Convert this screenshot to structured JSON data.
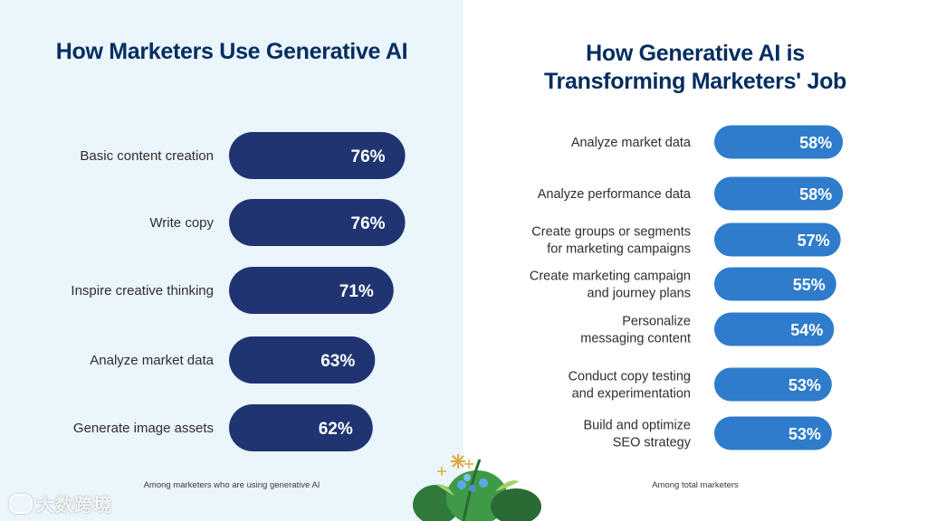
{
  "chart_data": [
    {
      "type": "bar",
      "orientation": "horizontal",
      "title": "How Marketers Use Generative AI",
      "categories": [
        "Basic content creation",
        "Write copy",
        "Inspire creative thinking",
        "Analyze market data",
        "Generate image assets"
      ],
      "values": [
        76,
        76,
        71,
        63,
        62
      ],
      "value_labels": [
        "76%",
        "76%",
        "71%",
        "63%",
        "62%"
      ],
      "unit": "%",
      "footnote": "Among marketers who are using generative AI",
      "bar_color": "#1f3470"
    },
    {
      "type": "bar",
      "orientation": "horizontal",
      "title_lines": [
        "How Generative AI is",
        "Transforming Marketers' Job"
      ],
      "categories": [
        [
          "Analyze market data"
        ],
        [
          "Analyze performance data"
        ],
        [
          "Create groups or segments",
          "for marketing campaigns"
        ],
        [
          "Create marketing campaign",
          "and journey plans"
        ],
        [
          "Personalize",
          "messaging content"
        ],
        [
          "Conduct copy testing",
          "and experimentation"
        ],
        [
          "Build and optimize",
          "SEO strategy"
        ]
      ],
      "values": [
        58,
        58,
        57,
        55,
        54,
        53,
        53
      ],
      "value_labels": [
        "58%",
        "58%",
        "57%",
        "55%",
        "54%",
        "53%",
        "53%"
      ],
      "unit": "%",
      "footnote": "Among total marketers",
      "bar_color": "#2e7ccb"
    }
  ],
  "colors": {
    "title": "#032d60",
    "label": "#2e2e2e",
    "left_background": "#eaf5fc"
  },
  "watermark": "大数跨境"
}
